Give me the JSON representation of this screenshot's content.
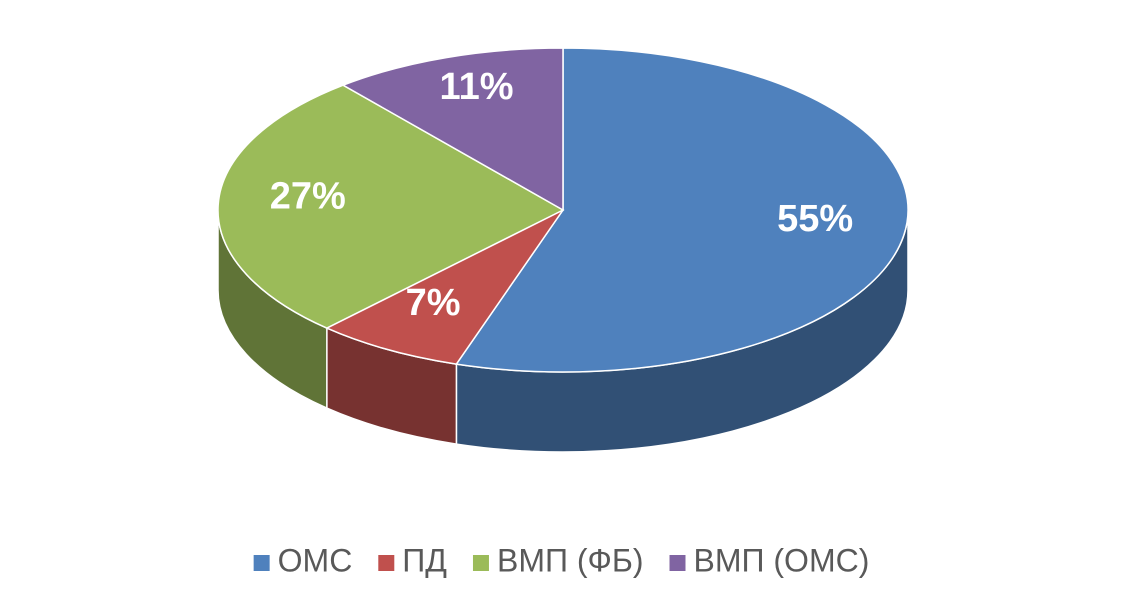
{
  "chart_data": {
    "type": "pie",
    "categories": [
      "ОМС",
      "ПД",
      "ВМП (ФБ)",
      "ВМП (ОМС)"
    ],
    "values": [
      55,
      7,
      27,
      11
    ],
    "value_labels": [
      "55%",
      "7%",
      "27%",
      "11%"
    ],
    "colors": [
      "#4f81bd",
      "#c0504d",
      "#9bbb59",
      "#8064a2"
    ],
    "legend": "bottom"
  }
}
